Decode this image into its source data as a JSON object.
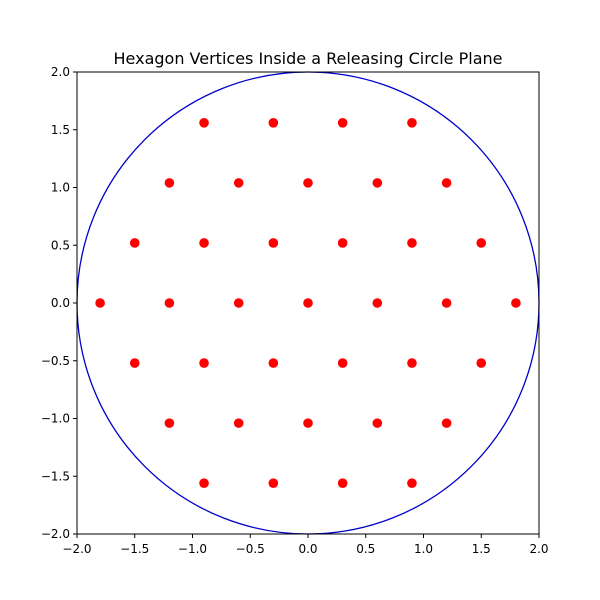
{
  "chart_data": {
    "type": "scatter",
    "title": "Hexagon Vertices Inside a Releasing Circle Plane",
    "xlabel": "",
    "ylabel": "",
    "xlim": [
      -2.0,
      2.0
    ],
    "ylim": [
      -2.0,
      2.0
    ],
    "grid": false,
    "x_ticks": [
      "−2.0",
      "−1.5",
      "−1.0",
      "−0.5",
      "0.0",
      "0.5",
      "1.0",
      "1.5",
      "2.0"
    ],
    "y_ticks": [
      "−2.0",
      "−1.5",
      "−1.0",
      "−0.5",
      "0.0",
      "0.5",
      "1.0",
      "1.5",
      "2.0"
    ],
    "circle": {
      "center": [
        0,
        0
      ],
      "radius": 2.0,
      "color": "#0000cc"
    },
    "points": {
      "color": "#ff0000",
      "x": [
        -0.9,
        -0.3,
        0.3,
        0.9,
        -1.2,
        -0.6,
        0.0,
        0.6,
        1.2,
        -1.5,
        -0.9,
        -0.3,
        0.3,
        0.9,
        1.5,
        -1.8,
        -1.2,
        -0.6,
        0.0,
        0.6,
        1.2,
        1.8,
        -1.5,
        -0.9,
        -0.3,
        0.3,
        0.9,
        1.5,
        -1.2,
        -0.6,
        0.0,
        0.6,
        1.2,
        -0.9,
        -0.3,
        0.3,
        0.9
      ],
      "y": [
        1.56,
        1.56,
        1.56,
        1.56,
        1.04,
        1.04,
        1.04,
        1.04,
        1.04,
        0.52,
        0.52,
        0.52,
        0.52,
        0.52,
        0.52,
        0.0,
        0.0,
        0.0,
        0.0,
        0.0,
        0.0,
        0.0,
        -0.52,
        -0.52,
        -0.52,
        -0.52,
        -0.52,
        -0.52,
        -1.04,
        -1.04,
        -1.04,
        -1.04,
        -1.04,
        -1.56,
        -1.56,
        -1.56,
        -1.56
      ]
    }
  }
}
